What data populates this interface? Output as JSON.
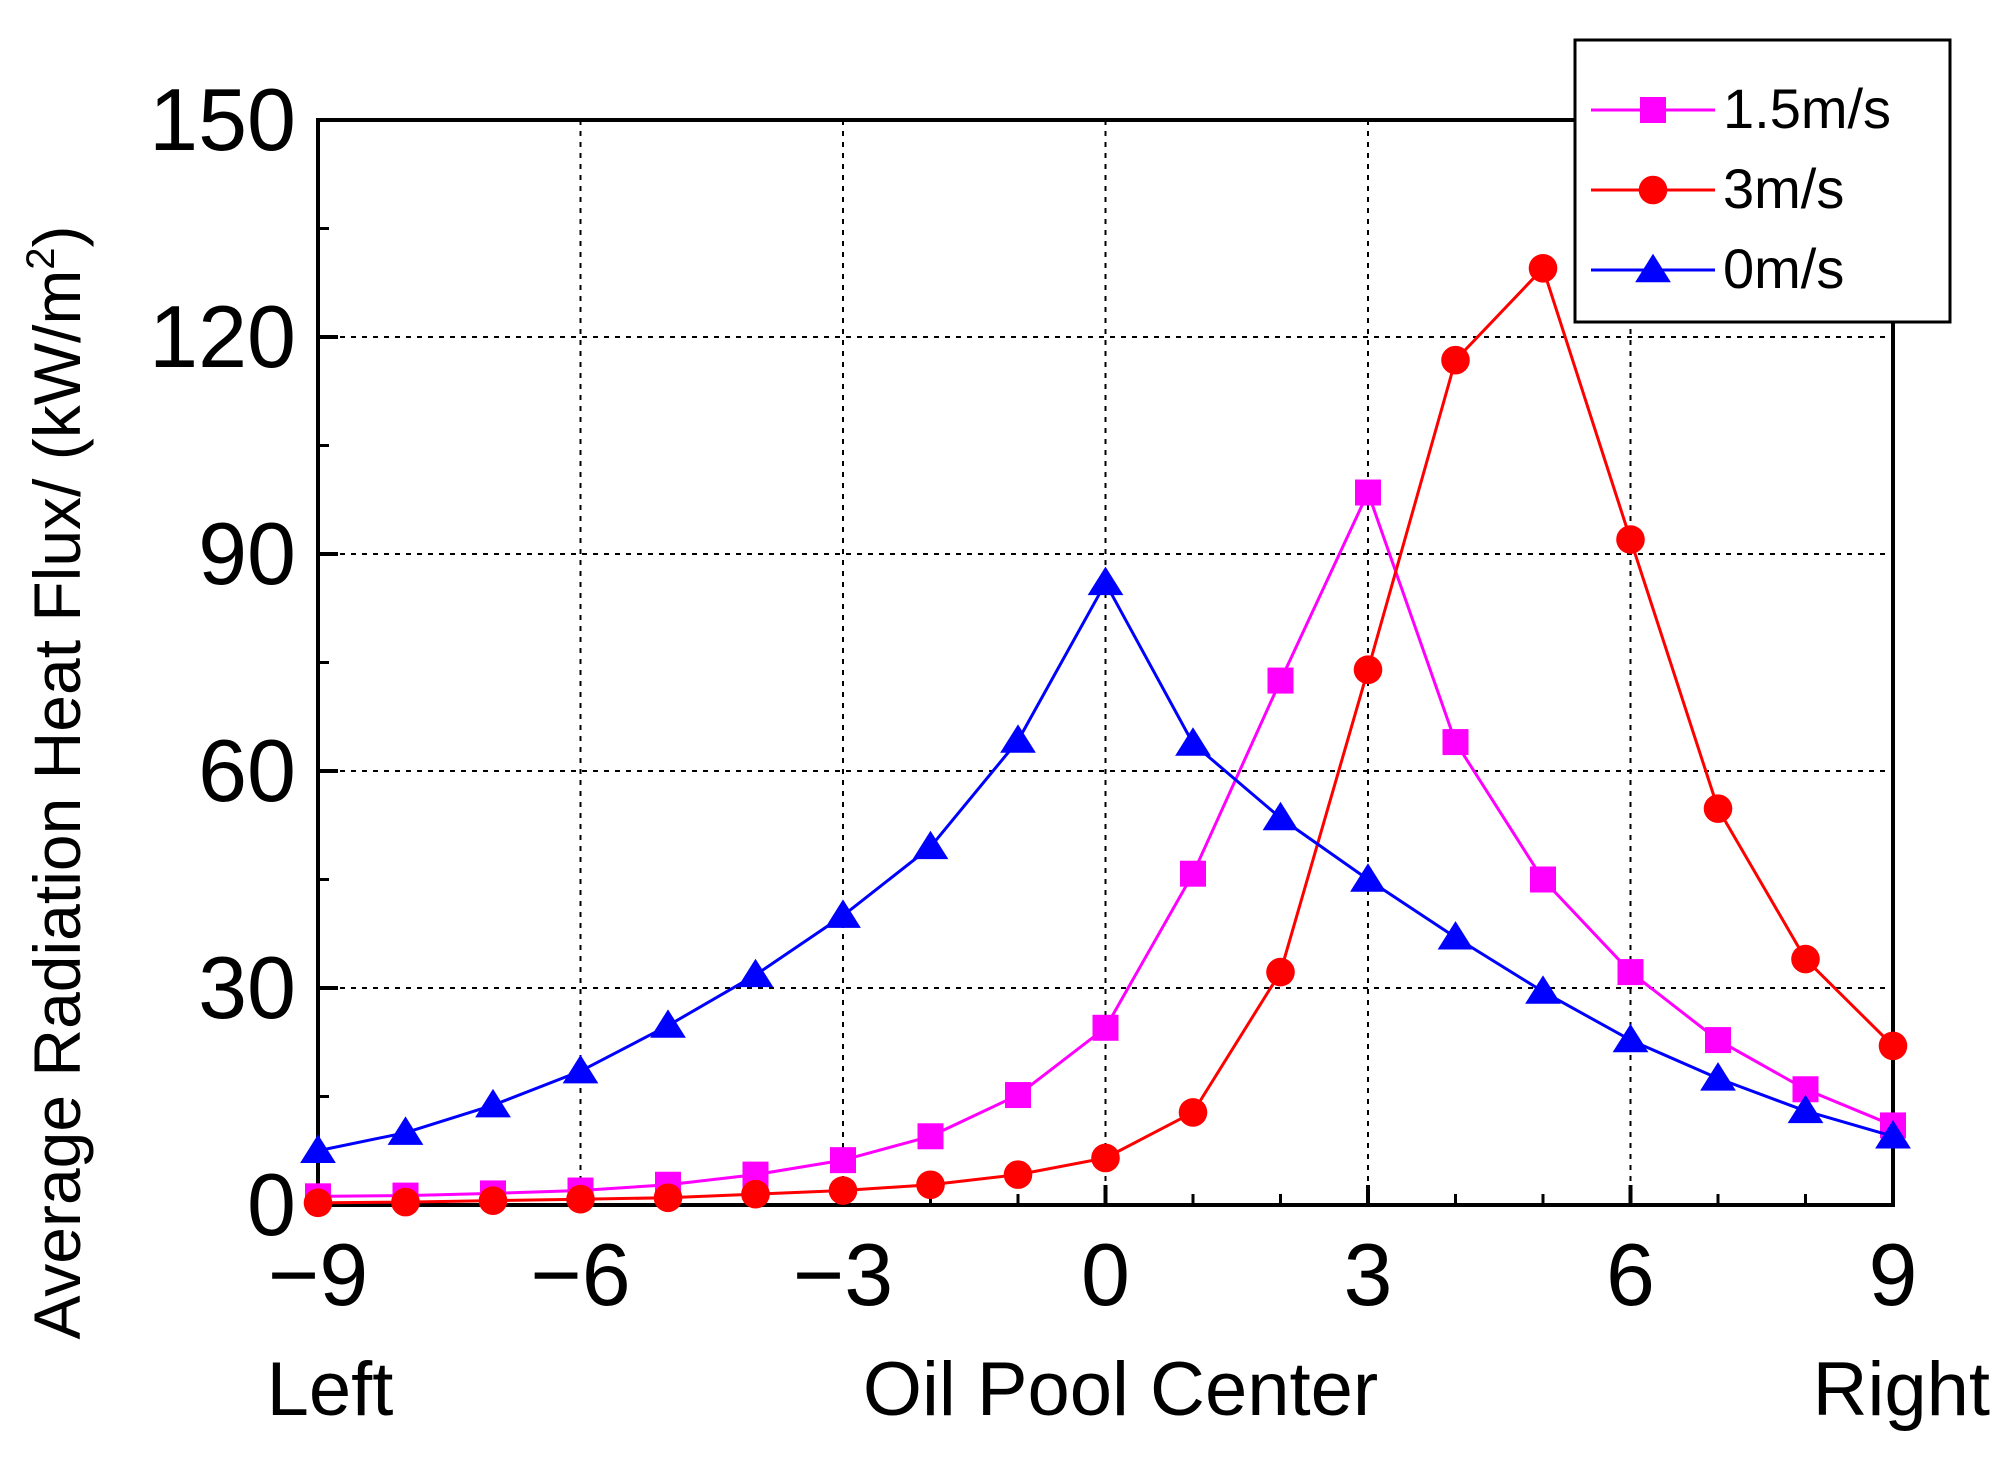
{
  "chart_data": {
    "type": "line",
    "ylabel_main": "Average Radiation Heat Flux/ (kW/m",
    "ylabel_sup": "2",
    "ylabel_close": ")",
    "x": [
      -9,
      -8,
      -7,
      -6,
      -5,
      -4,
      -3,
      -2,
      -1,
      0,
      1,
      2,
      3,
      4,
      5,
      6,
      7,
      8,
      9
    ],
    "xlim": [
      -9,
      9
    ],
    "ylim": [
      0,
      150
    ],
    "x_ticks": [
      -9,
      -6,
      -3,
      0,
      3,
      6,
      9
    ],
    "x_tick_labels": [
      "−9",
      "−6",
      "−3",
      "0",
      "3",
      "6",
      "9"
    ],
    "y_ticks": [
      0,
      30,
      60,
      90,
      120,
      150
    ],
    "y_tick_labels": [
      "0",
      "30",
      "60",
      "90",
      "120",
      "150"
    ],
    "x_position_labels": {
      "left": "Left",
      "center": "Oil Pool Center",
      "right": "Right"
    },
    "grid": true,
    "legend_position": "top-right",
    "series": [
      {
        "name": "1.5m/s",
        "color": "#ff00ff",
        "marker": "square",
        "values": [
          1.2,
          1.3,
          1.6,
          2.0,
          2.8,
          4.2,
          6.2,
          9.5,
          15.2,
          24.5,
          45.8,
          72.5,
          98.5,
          64.0,
          45.0,
          32.2,
          22.8,
          16.0,
          11.0
        ]
      },
      {
        "name": "3m/s",
        "color": "#ff0000",
        "marker": "circle",
        "values": [
          0.3,
          0.4,
          0.6,
          0.8,
          1.0,
          1.5,
          2.0,
          2.8,
          4.2,
          6.5,
          12.8,
          32.2,
          74.0,
          116.8,
          129.5,
          92.0,
          54.8,
          34.0,
          22.0
        ]
      },
      {
        "name": "0m/s",
        "color": "#0000ff",
        "marker": "triangle",
        "values": [
          7.5,
          10.0,
          13.8,
          18.5,
          24.8,
          31.8,
          40.0,
          49.5,
          64.2,
          86.0,
          63.8,
          53.5,
          45.0,
          37.0,
          29.5,
          22.8,
          17.5,
          13.0,
          9.5
        ]
      }
    ]
  }
}
